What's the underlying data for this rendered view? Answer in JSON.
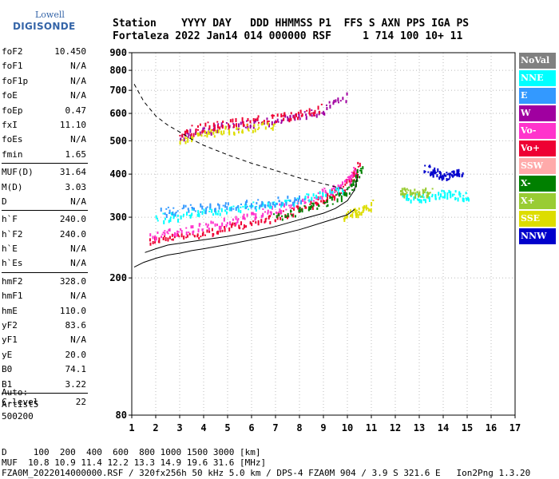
{
  "logo": {
    "line1": "Lowell",
    "line2": "DIGISONDE"
  },
  "header": {
    "row1": "Station    YYYY DAY   DDD HHMMSS P1  FFS S AXN PPS IGA PS",
    "row2": "Fortaleza 2022 Jan14 014 000000 RSF     1 714 100 10+ 11"
  },
  "params": [
    {
      "group": [
        {
          "name": "foF2",
          "value": "10.450"
        },
        {
          "name": "foF1",
          "value": "N/A"
        },
        {
          "name": "foF1p",
          "value": "N/A"
        },
        {
          "name": "foE",
          "value": "N/A"
        },
        {
          "name": "foEp",
          "value": "0.47"
        },
        {
          "name": "fxI",
          "value": "11.10"
        },
        {
          "name": "foEs",
          "value": "N/A"
        },
        {
          "name": "fmin",
          "value": "1.65"
        }
      ]
    },
    {
      "group": [
        {
          "name": "MUF(D)",
          "value": "31.64"
        },
        {
          "name": "M(D)",
          "value": "3.03"
        },
        {
          "name": "D",
          "value": "N/A"
        }
      ]
    },
    {
      "group": [
        {
          "name": "h`F",
          "value": "240.0"
        },
        {
          "name": "h`F2",
          "value": "240.0"
        },
        {
          "name": "h`E",
          "value": "N/A"
        },
        {
          "name": "h`Es",
          "value": "N/A"
        }
      ]
    },
    {
      "group": [
        {
          "name": "hmF2",
          "value": "328.0"
        },
        {
          "name": "hmF1",
          "value": "N/A"
        },
        {
          "name": "hmE",
          "value": "110.0"
        },
        {
          "name": "yF2",
          "value": "83.6"
        },
        {
          "name": "yF1",
          "value": "N/A"
        },
        {
          "name": "yE",
          "value": "20.0"
        },
        {
          "name": "B0",
          "value": "74.1"
        },
        {
          "name": "B1",
          "value": "3.22"
        }
      ]
    },
    {
      "group": [
        {
          "name": "C-level",
          "value": "22"
        }
      ]
    }
  ],
  "auto": {
    "line1": "Auto:",
    "line2": "Artist5",
    "line3": "500200"
  },
  "footer": {
    "row1": "D     100  200  400  600  800 1000 1500 3000 [km]",
    "row2": "MUF  10.8 10.9 11.4 12.2 13.3 14.9 19.6 31.6 [MHz]",
    "row3": "FZA0M_2022014000000.RSF / 320fx256h 50 kHz 5.0 km / DPS-4 FZA0M 904 / 3.9 S 321.6 E   Ion2Png 1.3.20"
  },
  "legend": [
    {
      "label": "NoVal",
      "color": "#808080"
    },
    {
      "label": "NNE",
      "color": "#00ffff"
    },
    {
      "label": "E",
      "color": "#3399ff"
    },
    {
      "label": "W",
      "color": "#a000a0"
    },
    {
      "label": "Vo-",
      "color": "#ff33cc"
    },
    {
      "label": "Vo+",
      "color": "#ee0033"
    },
    {
      "label": "SSW",
      "color": "#ffaaaa"
    },
    {
      "label": "X-",
      "color": "#008000"
    },
    {
      "label": "X+",
      "color": "#99cc33"
    },
    {
      "label": "SSE",
      "color": "#dddd00"
    },
    {
      "label": "NNW",
      "color": "#0000cc"
    }
  ],
  "chart_data": {
    "type": "scatter",
    "title": "",
    "xlabel": "",
    "ylabel": "",
    "xlim": [
      1,
      17
    ],
    "ylim": [
      80,
      900
    ],
    "yscale": "log",
    "x_ticks": [
      1,
      2,
      3,
      4,
      5,
      6,
      7,
      8,
      9,
      10,
      11,
      12,
      13,
      14,
      15,
      16,
      17
    ],
    "y_ticks": [
      80,
      200,
      300,
      400,
      500,
      600,
      700,
      800,
      900
    ],
    "grid": "dotted",
    "legend_position": "right",
    "series": [
      {
        "legend_index": 5,
        "kind": "trace",
        "x": [
          1.7,
          2.5,
          3.5,
          4.5,
          5.5,
          6.5,
          7.5,
          8.5,
          9.2,
          9.8,
          10.2,
          10.45
        ],
        "y": [
          258,
          262,
          268,
          276,
          285,
          295,
          310,
          330,
          345,
          365,
          395,
          430
        ]
      },
      {
        "legend_index": 4,
        "kind": "trace",
        "x": [
          1.8,
          2.6,
          3.6,
          4.6,
          5.6,
          6.6,
          7.6,
          8.6,
          9.4,
          10.0,
          10.4
        ],
        "y": [
          268,
          272,
          280,
          290,
          300,
          312,
          325,
          345,
          362,
          385,
          420
        ]
      },
      {
        "legend_index": 1,
        "kind": "trace",
        "x": [
          2.0,
          3.0,
          4.0,
          5.0,
          6.0,
          7.0,
          8.0,
          9.0,
          10.0
        ],
        "y": [
          300,
          305,
          312,
          318,
          325,
          332,
          340,
          350,
          365
        ]
      },
      {
        "legend_index": 2,
        "kind": "trace",
        "x": [
          2.2,
          3.2,
          4.2,
          5.2,
          6.2,
          7.2,
          8.2
        ],
        "y": [
          312,
          318,
          322,
          326,
          330,
          336,
          345
        ]
      },
      {
        "legend_index": 7,
        "kind": "trace",
        "x": [
          7.0,
          8.0,
          9.0,
          9.8,
          10.3,
          10.6
        ],
        "y": [
          300,
          315,
          330,
          350,
          380,
          420
        ]
      },
      {
        "legend_index": 9,
        "kind": "trace",
        "x": [
          9.8,
          10.2,
          10.6,
          11.0
        ],
        "y": [
          305,
          310,
          315,
          330
        ]
      },
      {
        "legend_index": 3,
        "kind": "trace",
        "x": [
          3.0,
          4.0,
          5.0,
          6.0,
          7.0,
          8.0,
          9.0,
          10.0
        ],
        "y": [
          520,
          540,
          555,
          565,
          575,
          590,
          620,
          680
        ]
      },
      {
        "legend_index": 5,
        "kind": "trace",
        "x": [
          3.0,
          4.0,
          5.0,
          6.0,
          7.0,
          8.0,
          9.0
        ],
        "y": [
          530,
          550,
          565,
          575,
          585,
          600,
          630
        ]
      },
      {
        "legend_index": 9,
        "kind": "trace",
        "x": [
          3.0,
          4.0,
          5.0,
          6.0,
          7.0
        ],
        "y": [
          510,
          525,
          540,
          550,
          560
        ]
      },
      {
        "legend_index": 1,
        "kind": "trace",
        "x": [
          12.2,
          12.8,
          13.4,
          14.0,
          14.6,
          15.0
        ],
        "y": [
          350,
          345,
          348,
          352,
          350,
          348
        ]
      },
      {
        "legend_index": 10,
        "kind": "trace",
        "x": [
          13.2,
          13.6,
          14.0,
          14.4,
          14.8
        ],
        "y": [
          420,
          410,
          395,
          400,
          410
        ]
      },
      {
        "legend_index": 8,
        "kind": "trace",
        "x": [
          12.2,
          12.5,
          13.0,
          13.5
        ],
        "y": [
          360,
          355,
          355,
          360
        ]
      }
    ],
    "lines": [
      {
        "name": "profile",
        "style": "solid",
        "x": [
          1.55,
          2,
          2.5,
          3,
          4,
          5,
          6,
          7,
          8,
          9,
          9.5,
          10,
          10.3,
          10.45
        ],
        "y": [
          237,
          243,
          249,
          252,
          258,
          264,
          272,
          282,
          295,
          308,
          318,
          335,
          360,
          400
        ]
      },
      {
        "name": "profile-lower",
        "style": "solid",
        "x": [
          1.1,
          1.5,
          2.0,
          2.5,
          3.0,
          3.5,
          4.0,
          5.0,
          6.0,
          7.0,
          8.0,
          9.0,
          10.0,
          10.3
        ],
        "y": [
          215,
          222,
          228,
          233,
          236,
          240,
          243,
          250,
          258,
          266,
          276,
          290,
          305,
          316
        ]
      },
      {
        "name": "muf-curve",
        "style": "dashed",
        "x": [
          1.1,
          1.5,
          2,
          2.5,
          3,
          3.5,
          4,
          5,
          6,
          7,
          8,
          9,
          10
        ],
        "y": [
          730,
          650,
          590,
          555,
          530,
          505,
          485,
          455,
          430,
          410,
          390,
          375,
          360
        ]
      }
    ]
  }
}
